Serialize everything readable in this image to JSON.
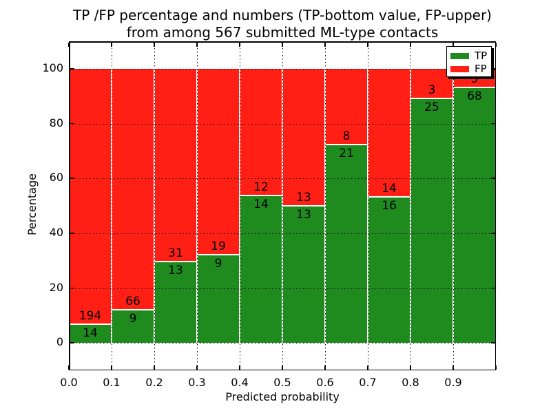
{
  "figure": {
    "title_line1": "TP /FP percentage and numbers (TP-bottom value, FP-upper)",
    "title_line2": "from among 567 submitted ML-type contacts"
  },
  "chart_data": {
    "type": "bar",
    "stacked": true,
    "title": "TP /FP percentage and numbers (TP-bottom value, FP-upper) from among 567 submitted ML-type contacts",
    "xlabel": "Predicted probability",
    "ylabel": "Percentage",
    "total_submitted": 567,
    "bins": [
      {
        "x_range": [
          0.0,
          0.1
        ],
        "tp": 14,
        "fp": 194
      },
      {
        "x_range": [
          0.1,
          0.2
        ],
        "tp": 9,
        "fp": 66
      },
      {
        "x_range": [
          0.2,
          0.3
        ],
        "tp": 13,
        "fp": 31
      },
      {
        "x_range": [
          0.3,
          0.4
        ],
        "tp": 9,
        "fp": 19
      },
      {
        "x_range": [
          0.4,
          0.5
        ],
        "tp": 14,
        "fp": 12
      },
      {
        "x_range": [
          0.5,
          0.6
        ],
        "tp": 13,
        "fp": 13
      },
      {
        "x_range": [
          0.6,
          0.7
        ],
        "tp": 21,
        "fp": 8
      },
      {
        "x_range": [
          0.7,
          0.8
        ],
        "tp": 16,
        "fp": 14
      },
      {
        "x_range": [
          0.8,
          0.9
        ],
        "tp": 25,
        "fp": 3
      },
      {
        "x_range": [
          0.9,
          1.0
        ],
        "tp": 68,
        "fp": 5
      }
    ],
    "series": [
      {
        "name": "TP",
        "color": "#1f8b1f"
      },
      {
        "name": "FP",
        "color": "#ff1f14"
      }
    ],
    "bar_heights_percent_tp": [
      6.73,
      12.0,
      29.55,
      32.14,
      53.85,
      50.0,
      72.41,
      53.33,
      89.29,
      93.15
    ],
    "y_ticks": [
      0,
      20,
      40,
      60,
      80,
      100
    ],
    "x_tick_labels": [
      "0.0",
      "0.1",
      "0.2",
      "0.3",
      "0.4",
      "0.5",
      "0.6",
      "0.7",
      "0.8",
      "0.9"
    ],
    "xlim": [
      0.0,
      1.0
    ],
    "ylim": [
      -10,
      110
    ],
    "grid": true,
    "legend": {
      "position": "upper right",
      "entries": [
        "TP",
        "FP"
      ],
      "shadow": true
    }
  }
}
